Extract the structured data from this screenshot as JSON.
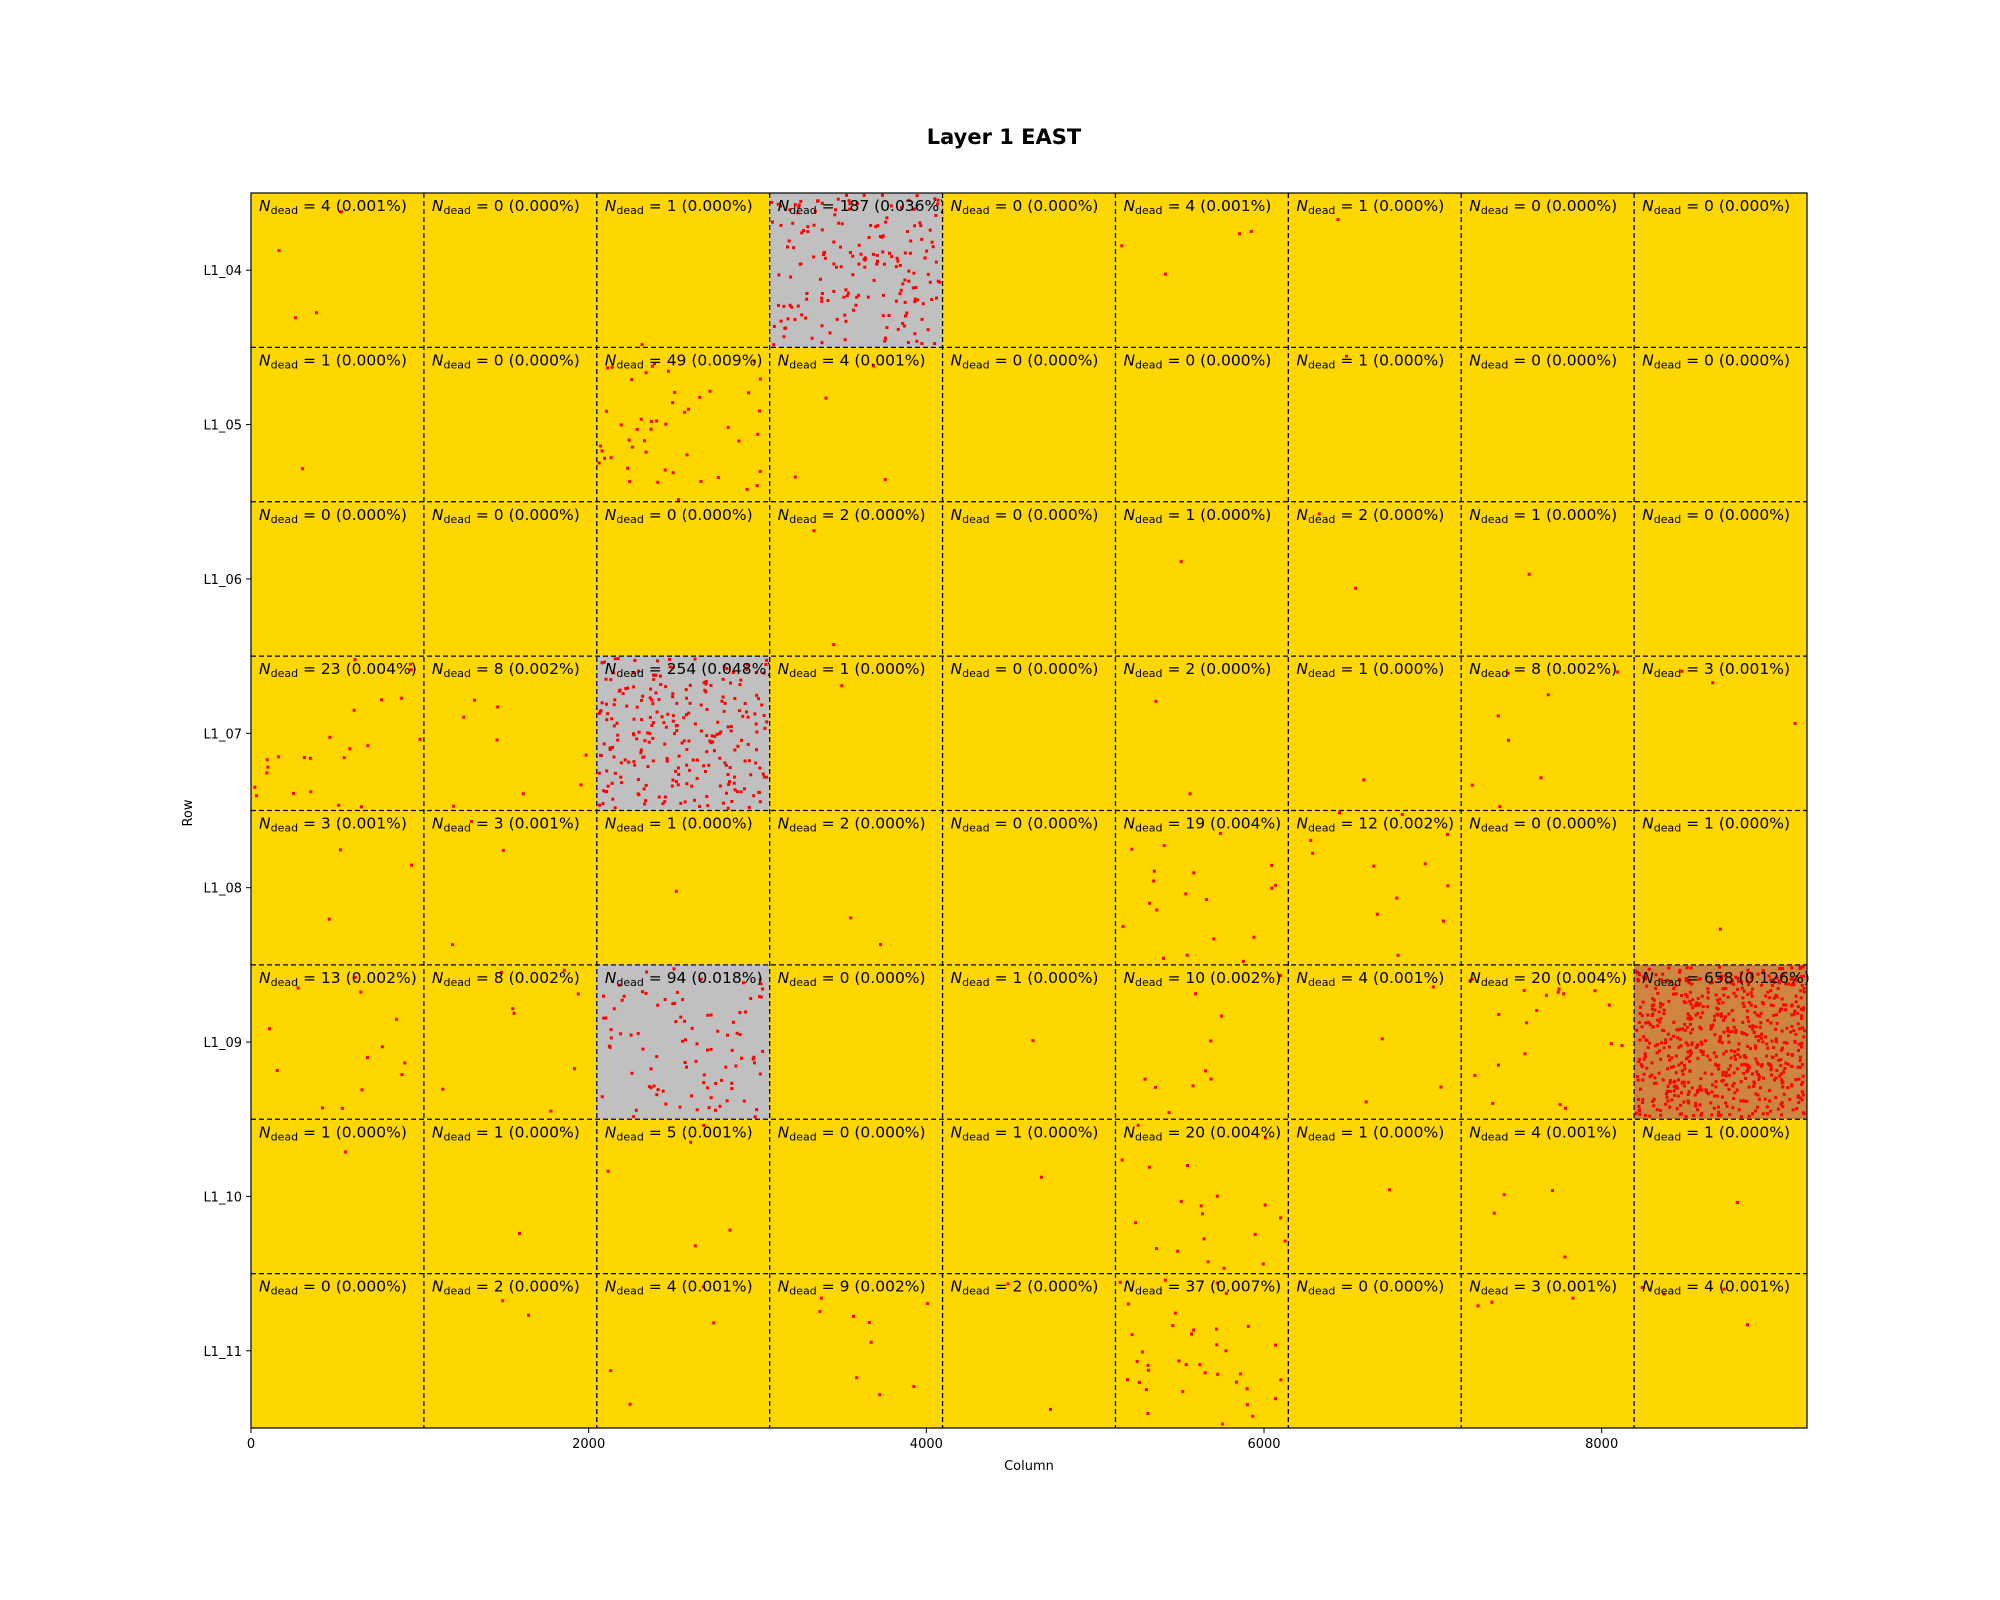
{
  "chart_data": {
    "type": "heatmap",
    "title": "Layer 1 EAST",
    "xlabel": "Column",
    "ylabel": "Row",
    "xlim": [
      0,
      9216
    ],
    "x_ticks": [
      "0",
      "2000",
      "4000",
      "6000",
      "8000"
    ],
    "x_tick_values": [
      0,
      2000,
      4000,
      6000,
      8000
    ],
    "rows": [
      "L1_04",
      "L1_05",
      "L1_06",
      "L1_07",
      "L1_08",
      "L1_09",
      "L1_10",
      "L1_11"
    ],
    "label_prefix": "N",
    "label_subscript": "dead",
    "colors": {
      "low": "#ffd700",
      "medium": "#c0c0c0",
      "high": "#cd853f",
      "pixel": "#ff0000"
    },
    "cells": [
      [
        {
          "n": 4,
          "pct": "0.001%"
        },
        {
          "n": 0,
          "pct": "0.000%"
        },
        {
          "n": 1,
          "pct": "0.000%"
        },
        {
          "n": 187,
          "pct": "0.036%"
        },
        {
          "n": 0,
          "pct": "0.000%"
        },
        {
          "n": 4,
          "pct": "0.001%"
        },
        {
          "n": 1,
          "pct": "0.000%"
        },
        {
          "n": 0,
          "pct": "0.000%"
        },
        {
          "n": 0,
          "pct": "0.000%"
        }
      ],
      [
        {
          "n": 1,
          "pct": "0.000%"
        },
        {
          "n": 0,
          "pct": "0.000%"
        },
        {
          "n": 49,
          "pct": "0.009%"
        },
        {
          "n": 4,
          "pct": "0.001%"
        },
        {
          "n": 0,
          "pct": "0.000%"
        },
        {
          "n": 0,
          "pct": "0.000%"
        },
        {
          "n": 1,
          "pct": "0.000%"
        },
        {
          "n": 0,
          "pct": "0.000%"
        },
        {
          "n": 0,
          "pct": "0.000%"
        }
      ],
      [
        {
          "n": 0,
          "pct": "0.000%"
        },
        {
          "n": 0,
          "pct": "0.000%"
        },
        {
          "n": 0,
          "pct": "0.000%"
        },
        {
          "n": 2,
          "pct": "0.000%"
        },
        {
          "n": 0,
          "pct": "0.000%"
        },
        {
          "n": 1,
          "pct": "0.000%"
        },
        {
          "n": 2,
          "pct": "0.000%"
        },
        {
          "n": 1,
          "pct": "0.000%"
        },
        {
          "n": 0,
          "pct": "0.000%"
        }
      ],
      [
        {
          "n": 23,
          "pct": "0.004%"
        },
        {
          "n": 8,
          "pct": "0.002%"
        },
        {
          "n": 254,
          "pct": "0.048%"
        },
        {
          "n": 1,
          "pct": "0.000%"
        },
        {
          "n": 0,
          "pct": "0.000%"
        },
        {
          "n": 2,
          "pct": "0.000%"
        },
        {
          "n": 1,
          "pct": "0.000%"
        },
        {
          "n": 8,
          "pct": "0.002%"
        },
        {
          "n": 3,
          "pct": "0.001%"
        }
      ],
      [
        {
          "n": 3,
          "pct": "0.001%"
        },
        {
          "n": 3,
          "pct": "0.001%"
        },
        {
          "n": 1,
          "pct": "0.000%"
        },
        {
          "n": 2,
          "pct": "0.000%"
        },
        {
          "n": 0,
          "pct": "0.000%"
        },
        {
          "n": 19,
          "pct": "0.004%"
        },
        {
          "n": 12,
          "pct": "0.002%"
        },
        {
          "n": 0,
          "pct": "0.000%"
        },
        {
          "n": 1,
          "pct": "0.000%"
        }
      ],
      [
        {
          "n": 13,
          "pct": "0.002%"
        },
        {
          "n": 8,
          "pct": "0.002%"
        },
        {
          "n": 94,
          "pct": "0.018%"
        },
        {
          "n": 0,
          "pct": "0.000%"
        },
        {
          "n": 1,
          "pct": "0.000%"
        },
        {
          "n": 10,
          "pct": "0.002%"
        },
        {
          "n": 4,
          "pct": "0.001%"
        },
        {
          "n": 20,
          "pct": "0.004%"
        },
        {
          "n": 658,
          "pct": "0.126%"
        }
      ],
      [
        {
          "n": 1,
          "pct": "0.000%"
        },
        {
          "n": 1,
          "pct": "0.000%"
        },
        {
          "n": 5,
          "pct": "0.001%"
        },
        {
          "n": 0,
          "pct": "0.000%"
        },
        {
          "n": 1,
          "pct": "0.000%"
        },
        {
          "n": 20,
          "pct": "0.004%"
        },
        {
          "n": 1,
          "pct": "0.000%"
        },
        {
          "n": 4,
          "pct": "0.001%"
        },
        {
          "n": 1,
          "pct": "0.000%"
        }
      ],
      [
        {
          "n": 0,
          "pct": "0.000%"
        },
        {
          "n": 2,
          "pct": "0.000%"
        },
        {
          "n": 4,
          "pct": "0.001%"
        },
        {
          "n": 9,
          "pct": "0.002%"
        },
        {
          "n": 2,
          "pct": "0.000%"
        },
        {
          "n": 37,
          "pct": "0.007%"
        },
        {
          "n": 0,
          "pct": "0.000%"
        },
        {
          "n": 3,
          "pct": "0.001%"
        },
        {
          "n": 4,
          "pct": "0.001%"
        }
      ]
    ]
  }
}
